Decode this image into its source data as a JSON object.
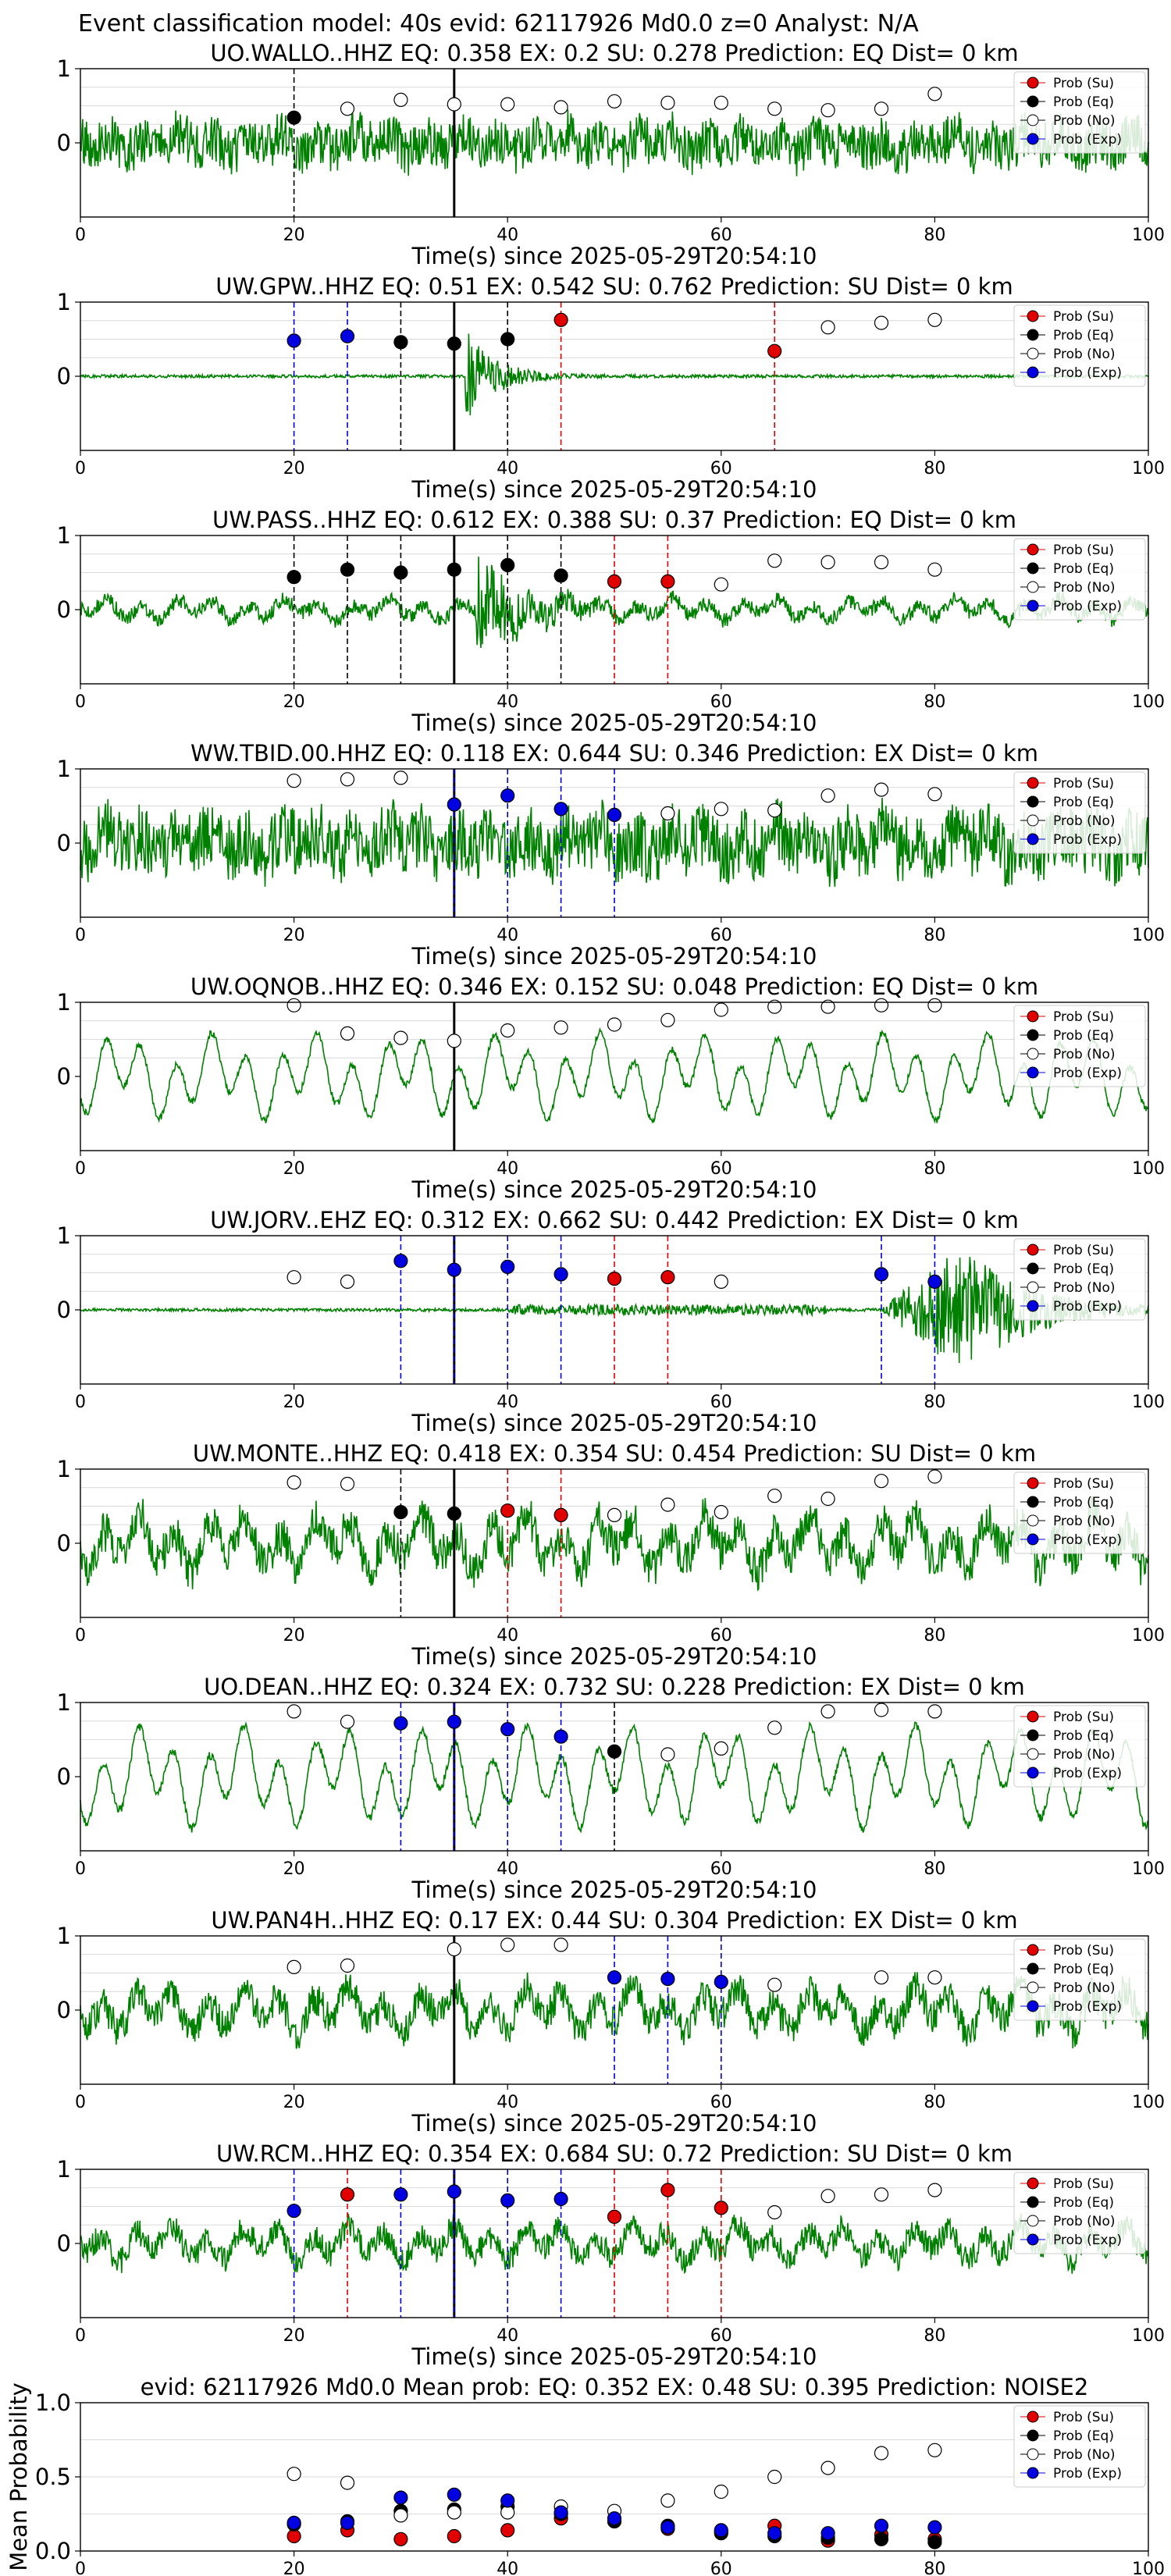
{
  "figure": {
    "suptitle": "Event classification model: 40s evid: 62117926 Md0.0 z=0 Analyst: N/A",
    "colors": {
      "waveform": "#008000",
      "su": "#e00000",
      "eq": "#000000",
      "no": "#ffffff",
      "exp": "#0000e0",
      "pick_line": "#000000",
      "grid": "#d9d9d9"
    }
  },
  "legend_labels": [
    "Prob (Su)",
    "Prob (Eq)",
    "Prob (No)",
    "Prob (Exp)"
  ],
  "chart_data": [
    {
      "type": "scatter",
      "title": "UO.WALLO..HHZ   EQ: 0.358   EX: 0.2   SU: 0.278   Prediction: EQ    Dist= 0 km",
      "xlabel": "Time(s) since 2025-05-29T20:54:10",
      "xlim": [
        0,
        100
      ],
      "ylim": [
        -1,
        1
      ],
      "xticks": [
        "0",
        "20",
        "40",
        "60",
        "80",
        "100"
      ],
      "yticks": [
        "1",
        "0"
      ],
      "waveform": {
        "kind": "noise",
        "amplitude": 0.4,
        "onset": null,
        "seed": 11
      },
      "pick_time": 35,
      "markers": [
        {
          "t": 20,
          "class": "eq",
          "p": 0.34
        },
        {
          "t": 25,
          "class": "no",
          "p": 0.46
        },
        {
          "t": 30,
          "class": "no",
          "p": 0.58
        },
        {
          "t": 35,
          "class": "no",
          "p": 0.52
        },
        {
          "t": 40,
          "class": "no",
          "p": 0.52
        },
        {
          "t": 45,
          "class": "no",
          "p": 0.48
        },
        {
          "t": 50,
          "class": "no",
          "p": 0.56
        },
        {
          "t": 55,
          "class": "no",
          "p": 0.54
        },
        {
          "t": 60,
          "class": "no",
          "p": 0.54
        },
        {
          "t": 65,
          "class": "no",
          "p": 0.46
        },
        {
          "t": 70,
          "class": "no",
          "p": 0.44
        },
        {
          "t": 75,
          "class": "no",
          "p": 0.46
        },
        {
          "t": 80,
          "class": "no",
          "p": 0.66
        }
      ]
    },
    {
      "type": "scatter",
      "title": "UW.GPW..HHZ   EQ: 0.51   EX: 0.542   SU: 0.762   Prediction: SU    Dist= 0 km",
      "xlabel": "Time(s) since 2025-05-29T20:54:10",
      "xlim": [
        0,
        100
      ],
      "ylim": [
        -1,
        1
      ],
      "xticks": [
        "0",
        "20",
        "40",
        "60",
        "80",
        "100"
      ],
      "yticks": [
        "1",
        "0"
      ],
      "waveform": {
        "kind": "burst",
        "amplitude": 0.02,
        "onset": 36,
        "seed": 12
      },
      "pick_time": 35,
      "markers": [
        {
          "t": 20,
          "class": "exp",
          "p": 0.48
        },
        {
          "t": 25,
          "class": "exp",
          "p": 0.54
        },
        {
          "t": 30,
          "class": "eq",
          "p": 0.46
        },
        {
          "t": 35,
          "class": "eq",
          "p": 0.44
        },
        {
          "t": 40,
          "class": "eq",
          "p": 0.5
        },
        {
          "t": 45,
          "class": "su",
          "p": 0.76
        },
        {
          "t": 65,
          "class": "su",
          "p": 0.34
        },
        {
          "t": 70,
          "class": "no",
          "p": 0.66
        },
        {
          "t": 75,
          "class": "no",
          "p": 0.72
        },
        {
          "t": 80,
          "class": "no",
          "p": 0.76
        }
      ]
    },
    {
      "type": "scatter",
      "title": "UW.PASS..HHZ   EQ: 0.612   EX: 0.388   SU: 0.37   Prediction: EQ    Dist= 0 km",
      "xlabel": "Time(s) since 2025-05-29T20:54:10",
      "xlim": [
        0,
        100
      ],
      "ylim": [
        -1,
        1
      ],
      "xticks": [
        "0",
        "20",
        "40",
        "60",
        "80",
        "100"
      ],
      "yticks": [
        "1",
        "0"
      ],
      "waveform": {
        "kind": "mixed-burst",
        "amplitude": 0.25,
        "onset": 37,
        "seed": 13
      },
      "pick_time": 35,
      "markers": [
        {
          "t": 20,
          "class": "eq",
          "p": 0.44
        },
        {
          "t": 25,
          "class": "eq",
          "p": 0.54
        },
        {
          "t": 30,
          "class": "eq",
          "p": 0.5
        },
        {
          "t": 35,
          "class": "eq",
          "p": 0.54
        },
        {
          "t": 40,
          "class": "eq",
          "p": 0.6
        },
        {
          "t": 45,
          "class": "eq",
          "p": 0.46
        },
        {
          "t": 50,
          "class": "su",
          "p": 0.38
        },
        {
          "t": 55,
          "class": "su",
          "p": 0.38
        },
        {
          "t": 60,
          "class": "no",
          "p": 0.34
        },
        {
          "t": 65,
          "class": "no",
          "p": 0.66
        },
        {
          "t": 70,
          "class": "no",
          "p": 0.64
        },
        {
          "t": 75,
          "class": "no",
          "p": 0.64
        },
        {
          "t": 80,
          "class": "no",
          "p": 0.54
        }
      ]
    },
    {
      "type": "scatter",
      "title": "WW.TBID.00.HHZ   EQ: 0.118   EX: 0.644   SU: 0.346   Prediction: EX    Dist= 0 km",
      "xlabel": "Time(s) since 2025-05-29T20:54:10",
      "xlim": [
        0,
        100
      ],
      "ylim": [
        -1,
        1
      ],
      "xticks": [
        "0",
        "20",
        "40",
        "60",
        "80",
        "100"
      ],
      "yticks": [
        "1",
        "0"
      ],
      "waveform": {
        "kind": "noise",
        "amplitude": 0.55,
        "onset": null,
        "seed": 14
      },
      "pick_time": 35,
      "markers": [
        {
          "t": 20,
          "class": "no",
          "p": 0.84
        },
        {
          "t": 25,
          "class": "no",
          "p": 0.86
        },
        {
          "t": 30,
          "class": "no",
          "p": 0.88
        },
        {
          "t": 35,
          "class": "exp",
          "p": 0.52
        },
        {
          "t": 40,
          "class": "exp",
          "p": 0.64
        },
        {
          "t": 45,
          "class": "exp",
          "p": 0.46
        },
        {
          "t": 50,
          "class": "exp",
          "p": 0.38
        },
        {
          "t": 55,
          "class": "no",
          "p": 0.4
        },
        {
          "t": 60,
          "class": "no",
          "p": 0.46
        },
        {
          "t": 65,
          "class": "no",
          "p": 0.44
        },
        {
          "t": 70,
          "class": "no",
          "p": 0.64
        },
        {
          "t": 75,
          "class": "no",
          "p": 0.72
        },
        {
          "t": 80,
          "class": "no",
          "p": 0.66
        }
      ]
    },
    {
      "type": "scatter",
      "title": "UW.OQNOB..HHZ   EQ: 0.346   EX: 0.152   SU: 0.048   Prediction: EQ    Dist= 0 km",
      "xlabel": "Time(s) since 2025-05-29T20:54:10",
      "xlim": [
        0,
        100
      ],
      "ylim": [
        -1,
        1
      ],
      "xticks": [
        "0",
        "20",
        "40",
        "60",
        "80",
        "100"
      ],
      "yticks": [
        "1",
        "0"
      ],
      "waveform": {
        "kind": "swell",
        "amplitude": 0.6,
        "onset": null,
        "seed": 15
      },
      "pick_time": 35,
      "markers": [
        {
          "t": 20,
          "class": "no",
          "p": 0.96
        },
        {
          "t": 25,
          "class": "no",
          "p": 0.58
        },
        {
          "t": 30,
          "class": "no",
          "p": 0.52
        },
        {
          "t": 35,
          "class": "no",
          "p": 0.48
        },
        {
          "t": 40,
          "class": "no",
          "p": 0.62
        },
        {
          "t": 45,
          "class": "no",
          "p": 0.66
        },
        {
          "t": 50,
          "class": "no",
          "p": 0.7
        },
        {
          "t": 55,
          "class": "no",
          "p": 0.76
        },
        {
          "t": 60,
          "class": "no",
          "p": 0.9
        },
        {
          "t": 65,
          "class": "no",
          "p": 0.94
        },
        {
          "t": 70,
          "class": "no",
          "p": 0.94
        },
        {
          "t": 75,
          "class": "no",
          "p": 0.96
        },
        {
          "t": 80,
          "class": "no",
          "p": 0.96
        }
      ]
    },
    {
      "type": "scatter",
      "title": "UW.JORV..EHZ   EQ: 0.312  EX: 0.662  SU: 0.442   Prediction: EX    Dist= 0 km",
      "xlabel": "Time(s) since 2025-05-29T20:54:10",
      "xlim": [
        0,
        100
      ],
      "ylim": [
        -1,
        1
      ],
      "xticks": [
        "0",
        "20",
        "40",
        "60",
        "80",
        "100"
      ],
      "yticks": [
        "1",
        "0"
      ],
      "waveform": {
        "kind": "late-burst",
        "amplitude": 0.02,
        "onset": 75,
        "seed": 16
      },
      "pick_time": 35,
      "markers": [
        {
          "t": 20,
          "class": "no",
          "p": 0.44
        },
        {
          "t": 25,
          "class": "no",
          "p": 0.38
        },
        {
          "t": 30,
          "class": "exp",
          "p": 0.66
        },
        {
          "t": 35,
          "class": "exp",
          "p": 0.54
        },
        {
          "t": 40,
          "class": "exp",
          "p": 0.58
        },
        {
          "t": 45,
          "class": "exp",
          "p": 0.48
        },
        {
          "t": 50,
          "class": "su",
          "p": 0.42
        },
        {
          "t": 55,
          "class": "su",
          "p": 0.44
        },
        {
          "t": 60,
          "class": "no",
          "p": 0.38
        },
        {
          "t": 75,
          "class": "exp",
          "p": 0.48
        },
        {
          "t": 80,
          "class": "exp",
          "p": 0.38
        }
      ]
    },
    {
      "type": "scatter",
      "title": "UW.MONTE..HHZ   EQ: 0.418   EX: 0.354   SU: 0.454   Prediction: SU    Dist= 0 km",
      "xlabel": "Time(s) since 2025-05-29T20:54:10",
      "xlim": [
        0,
        100
      ],
      "ylim": [
        -1,
        1
      ],
      "xticks": [
        "0",
        "20",
        "40",
        "60",
        "80",
        "100"
      ],
      "yticks": [
        "1",
        "0"
      ],
      "waveform": {
        "kind": "swell-noise",
        "amplitude": 0.55,
        "onset": null,
        "seed": 17
      },
      "pick_time": 35,
      "markers": [
        {
          "t": 20,
          "class": "no",
          "p": 0.82
        },
        {
          "t": 25,
          "class": "no",
          "p": 0.8
        },
        {
          "t": 30,
          "class": "eq",
          "p": 0.42
        },
        {
          "t": 35,
          "class": "eq",
          "p": 0.4
        },
        {
          "t": 40,
          "class": "su",
          "p": 0.44
        },
        {
          "t": 45,
          "class": "su",
          "p": 0.38
        },
        {
          "t": 50,
          "class": "no",
          "p": 0.38
        },
        {
          "t": 55,
          "class": "no",
          "p": 0.52
        },
        {
          "t": 60,
          "class": "no",
          "p": 0.42
        },
        {
          "t": 65,
          "class": "no",
          "p": 0.64
        },
        {
          "t": 70,
          "class": "no",
          "p": 0.6
        },
        {
          "t": 75,
          "class": "no",
          "p": 0.84
        },
        {
          "t": 80,
          "class": "no",
          "p": 0.9
        }
      ]
    },
    {
      "type": "scatter",
      "title": "UO.DEAN..HHZ   EQ: 0.324   EX: 0.732   SU: 0.228   Prediction: EX    Dist= 0 km",
      "xlabel": "Time(s) since 2025-05-29T20:54:10",
      "xlim": [
        0,
        100
      ],
      "ylim": [
        -1,
        1
      ],
      "xticks": [
        "0",
        "20",
        "40",
        "60",
        "80",
        "100"
      ],
      "yticks": [
        "1",
        "0"
      ],
      "waveform": {
        "kind": "swell",
        "amplitude": 0.7,
        "onset": null,
        "seed": 18
      },
      "pick_time": 35,
      "markers": [
        {
          "t": 20,
          "class": "no",
          "p": 0.88
        },
        {
          "t": 25,
          "class": "no",
          "p": 0.74
        },
        {
          "t": 30,
          "class": "exp",
          "p": 0.72
        },
        {
          "t": 35,
          "class": "exp",
          "p": 0.74
        },
        {
          "t": 40,
          "class": "exp",
          "p": 0.64
        },
        {
          "t": 45,
          "class": "exp",
          "p": 0.54
        },
        {
          "t": 50,
          "class": "eq",
          "p": 0.34
        },
        {
          "t": 55,
          "class": "no",
          "p": 0.3
        },
        {
          "t": 60,
          "class": "no",
          "p": 0.38
        },
        {
          "t": 65,
          "class": "no",
          "p": 0.66
        },
        {
          "t": 70,
          "class": "no",
          "p": 0.88
        },
        {
          "t": 75,
          "class": "no",
          "p": 0.9
        },
        {
          "t": 80,
          "class": "no",
          "p": 0.88
        }
      ]
    },
    {
      "type": "scatter",
      "title": "UW.PAN4H..HHZ   EQ: 0.17   EX: 0.44   SU: 0.304   Prediction: EX    Dist= 0 km",
      "xlabel": "Time(s) since 2025-05-29T20:54:10",
      "xlim": [
        0,
        100
      ],
      "ylim": [
        -1,
        1
      ],
      "xticks": [
        "0",
        "20",
        "40",
        "60",
        "80",
        "100"
      ],
      "yticks": [
        "1",
        "0"
      ],
      "waveform": {
        "kind": "swell-noise",
        "amplitude": 0.45,
        "onset": null,
        "seed": 19
      },
      "pick_time": 35,
      "markers": [
        {
          "t": 20,
          "class": "no",
          "p": 0.58
        },
        {
          "t": 25,
          "class": "no",
          "p": 0.6
        },
        {
          "t": 35,
          "class": "no",
          "p": 0.82
        },
        {
          "t": 40,
          "class": "no",
          "p": 0.88
        },
        {
          "t": 45,
          "class": "no",
          "p": 0.88
        },
        {
          "t": 50,
          "class": "exp",
          "p": 0.44
        },
        {
          "t": 55,
          "class": "exp",
          "p": 0.42
        },
        {
          "t": 60,
          "class": "exp",
          "p": 0.38
        },
        {
          "t": 65,
          "class": "no",
          "p": 0.34
        },
        {
          "t": 75,
          "class": "no",
          "p": 0.44
        },
        {
          "t": 80,
          "class": "no",
          "p": 0.44
        }
      ]
    },
    {
      "type": "scatter",
      "title": "UW.RCM..HHZ   EQ: 0.354   EX: 0.684   SU: 0.72   Prediction: SU    Dist= 0 km",
      "xlabel": "Time(s) since 2025-05-29T20:54:10",
      "xlim": [
        0,
        100
      ],
      "ylim": [
        -1,
        1
      ],
      "xticks": [
        "0",
        "20",
        "40",
        "60",
        "80",
        "100"
      ],
      "yticks": [
        "1",
        "0"
      ],
      "waveform": {
        "kind": "swell-noise",
        "amplitude": 0.35,
        "onset": null,
        "seed": 20
      },
      "pick_time": 35,
      "markers": [
        {
          "t": 20,
          "class": "exp",
          "p": 0.44
        },
        {
          "t": 25,
          "class": "su",
          "p": 0.66
        },
        {
          "t": 30,
          "class": "exp",
          "p": 0.66
        },
        {
          "t": 35,
          "class": "exp",
          "p": 0.7
        },
        {
          "t": 40,
          "class": "exp",
          "p": 0.58
        },
        {
          "t": 45,
          "class": "exp",
          "p": 0.6
        },
        {
          "t": 50,
          "class": "su",
          "p": 0.36
        },
        {
          "t": 55,
          "class": "su",
          "p": 0.72
        },
        {
          "t": 60,
          "class": "su",
          "p": 0.48
        },
        {
          "t": 65,
          "class": "no",
          "p": 0.42
        },
        {
          "t": 70,
          "class": "no",
          "p": 0.64
        },
        {
          "t": 75,
          "class": "no",
          "p": 0.66
        },
        {
          "t": 80,
          "class": "no",
          "p": 0.72
        }
      ]
    },
    {
      "type": "scatter",
      "title": "evid: 62117926   Md0.0   Mean prob:   EQ: 0.352   EX: 0.48   SU: 0.395   Prediction: NOISE2",
      "xlabel": "",
      "ylabel": "Mean Probability",
      "xlim": [
        0,
        100
      ],
      "ylim": [
        0,
        1
      ],
      "xticks": [
        "0",
        "20",
        "40",
        "60",
        "80",
        "100"
      ],
      "yticks": [
        "0.0",
        "0.5",
        "1.0"
      ],
      "series": [
        {
          "name": "Prob (Su)",
          "class": "su",
          "x": [
            20,
            25,
            30,
            35,
            40,
            45,
            50,
            55,
            60,
            65,
            70,
            75,
            80
          ],
          "y": [
            0.1,
            0.14,
            0.08,
            0.1,
            0.14,
            0.22,
            0.2,
            0.15,
            0.13,
            0.17,
            0.07,
            0.11,
            0.08
          ]
        },
        {
          "name": "Prob (Eq)",
          "class": "eq",
          "x": [
            20,
            25,
            30,
            35,
            40,
            45,
            50,
            55,
            60,
            65,
            70,
            75,
            80
          ],
          "y": [
            0.18,
            0.2,
            0.27,
            0.28,
            0.3,
            0.25,
            0.2,
            0.17,
            0.12,
            0.1,
            0.09,
            0.08,
            0.06
          ]
        },
        {
          "name": "Prob (No)",
          "class": "no",
          "x": [
            20,
            25,
            30,
            35,
            40,
            45,
            50,
            55,
            60,
            65,
            70,
            75,
            80
          ],
          "y": [
            0.52,
            0.46,
            0.24,
            0.26,
            0.26,
            0.3,
            0.27,
            0.34,
            0.4,
            0.5,
            0.56,
            0.66,
            0.68
          ]
        },
        {
          "name": "Prob (Exp)",
          "class": "exp",
          "x": [
            20,
            25,
            30,
            35,
            40,
            45,
            50,
            55,
            60,
            65,
            70,
            75,
            80
          ],
          "y": [
            0.19,
            0.19,
            0.36,
            0.38,
            0.34,
            0.26,
            0.22,
            0.16,
            0.14,
            0.12,
            0.12,
            0.17,
            0.16
          ]
        }
      ]
    }
  ]
}
